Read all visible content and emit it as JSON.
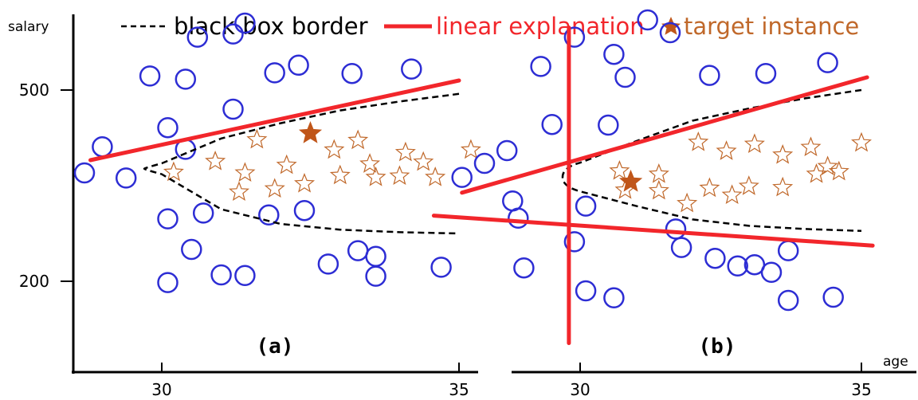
{
  "legend": {
    "border": "black box border",
    "linear": "linear explanation",
    "target": "target instance"
  },
  "colors": {
    "circle": "#2d2dd4",
    "star": "#c0682a",
    "target": "#c0561a",
    "line": "#f2262b",
    "border": "#000000"
  },
  "chart_data": {
    "type": "scatter",
    "xlabel": "age",
    "ylabel": "salary",
    "xticks": [
      "30",
      "35"
    ],
    "yticks": [
      "500",
      "200"
    ],
    "panels": [
      {
        "label": "(a)",
        "xlim": [
          27,
          35.2
        ],
        "ylim": [
          60,
          620
        ],
        "circles": [
          [
            29,
            411
          ],
          [
            29.8,
            522
          ],
          [
            30.1,
            441
          ],
          [
            31.4,
            605
          ],
          [
            30.4,
            517
          ],
          [
            31.2,
            588
          ],
          [
            31.9,
            527
          ],
          [
            32.3,
            539
          ],
          [
            33.2,
            526
          ],
          [
            34.2,
            533
          ],
          [
            30.6,
            583
          ],
          [
            30.4,
            407
          ],
          [
            31.2,
            470
          ],
          [
            28.7,
            370
          ],
          [
            29.4,
            362
          ],
          [
            30.7,
            307
          ],
          [
            30.1,
            298
          ],
          [
            30.1,
            198
          ],
          [
            31.4,
            209
          ],
          [
            31.8,
            304
          ],
          [
            32.4,
            311
          ],
          [
            33.3,
            248
          ],
          [
            33.6,
            239
          ],
          [
            34.7,
            222
          ],
          [
            33.6,
            208
          ],
          [
            32.8,
            227
          ],
          [
            31,
            210
          ],
          [
            30.5,
            250
          ]
        ],
        "stars": [
          [
            30.9,
            388
          ],
          [
            31.6,
            422
          ],
          [
            32.1,
            382
          ],
          [
            32.9,
            406
          ],
          [
            33.3,
            421
          ],
          [
            33.5,
            384
          ],
          [
            34.1,
            402
          ],
          [
            34.4,
            387
          ],
          [
            35.2,
            406
          ],
          [
            30.2,
            371
          ],
          [
            31.4,
            370
          ],
          [
            31.9,
            345
          ],
          [
            32.4,
            353
          ],
          [
            33,
            366
          ],
          [
            33.6,
            363
          ],
          [
            34,
            365
          ],
          [
            34.6,
            363
          ],
          [
            31.3,
            340
          ]
        ],
        "target": [
          32.5,
          432
        ],
        "linear_lines": [
          [
            [
              28.8,
              390
            ],
            [
              35,
              515
            ]
          ]
        ],
        "border_upper": [
          [
            30,
            385
          ],
          [
            31,
            424
          ],
          [
            32,
            448
          ],
          [
            33,
            468
          ],
          [
            34,
            482
          ],
          [
            35,
            494
          ]
        ],
        "border_lower": [
          [
            30,
            368
          ],
          [
            31,
            313
          ],
          [
            32,
            290
          ],
          [
            33,
            281
          ],
          [
            34,
            277
          ],
          [
            35,
            275
          ]
        ]
      },
      {
        "label": "(b)",
        "xlim": [
          27.2,
          35
        ],
        "ylim": [
          60,
          620
        ],
        "circles": [
          [
            28.7,
            405
          ],
          [
            29.3,
            537
          ],
          [
            29.5,
            446
          ],
          [
            31.2,
            610
          ],
          [
            30.8,
            520
          ],
          [
            31.6,
            590
          ],
          [
            32.3,
            523
          ],
          [
            33.3,
            526
          ],
          [
            34.4,
            543
          ],
          [
            29.9,
            583
          ],
          [
            30.6,
            556
          ],
          [
            30.5,
            445
          ],
          [
            28.3,
            385
          ],
          [
            27.9,
            363
          ],
          [
            28.8,
            326
          ],
          [
            28.9,
            299
          ],
          [
            30.1,
            185
          ],
          [
            30.6,
            174
          ],
          [
            31.8,
            253
          ],
          [
            32.4,
            236
          ],
          [
            33.1,
            226
          ],
          [
            33.4,
            214
          ],
          [
            33.7,
            170
          ],
          [
            34.5,
            175
          ],
          [
            33.7,
            248
          ],
          [
            32.8,
            224
          ],
          [
            29.9,
            262
          ],
          [
            31.7,
            282
          ],
          [
            30.1,
            318
          ],
          [
            29,
            221
          ]
        ],
        "stars": [
          [
            30.7,
            373
          ],
          [
            31.4,
            368
          ],
          [
            32.1,
            418
          ],
          [
            32.6,
            404
          ],
          [
            33.1,
            415
          ],
          [
            33.6,
            398
          ],
          [
            34.1,
            410
          ],
          [
            34.4,
            380
          ],
          [
            35,
            417
          ],
          [
            30.8,
            343
          ],
          [
            31.4,
            342
          ],
          [
            32.3,
            346
          ],
          [
            33,
            349
          ],
          [
            33.6,
            347
          ],
          [
            34.2,
            368
          ],
          [
            34.6,
            372
          ],
          [
            31.9,
            322
          ],
          [
            32.7,
            335
          ]
        ],
        "target": [
          30.9,
          356
        ],
        "linear_lines": [
          [
            [
              27.9,
              339
            ],
            [
              35.1,
              520
            ]
          ],
          [
            [
              27.4,
              303
            ],
            [
              35.2,
              256
            ]
          ],
          [
            [
              29.8,
              598
            ],
            [
              29.8,
              103
            ]
          ]
        ],
        "border_upper": [
          [
            30,
            386
          ],
          [
            31,
            420
          ],
          [
            32,
            452
          ],
          [
            33,
            471
          ],
          [
            34,
            487
          ],
          [
            35,
            500
          ]
        ],
        "border_lower": [
          [
            30,
            341
          ],
          [
            31,
            318
          ],
          [
            32,
            297
          ],
          [
            33,
            287
          ],
          [
            34,
            282
          ],
          [
            35,
            279
          ]
        ]
      }
    ]
  }
}
